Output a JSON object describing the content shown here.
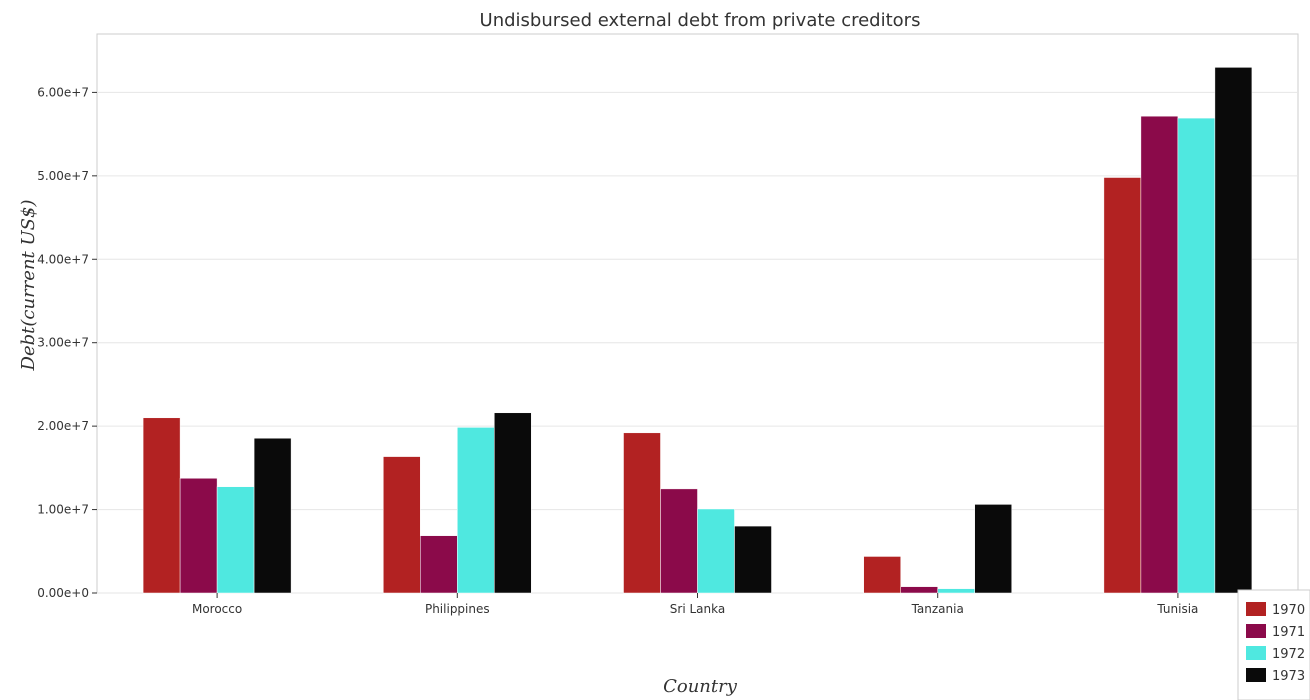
{
  "chart_data": {
    "type": "bar",
    "title": "Undisbursed external debt from private creditors",
    "xlabel": "Country",
    "ylabel": "Debt(current US$)",
    "categories": [
      "Morocco",
      "Philippines",
      "Sri Lanka",
      "Tanzania",
      "Tunisia"
    ],
    "series": [
      {
        "name": "1970",
        "color": "#b22222",
        "values": [
          21000000,
          16350000,
          19200000,
          4380000,
          49800000
        ]
      },
      {
        "name": "1971",
        "color": "#8b0a4a",
        "values": [
          13750000,
          6870000,
          12480000,
          760000,
          57150000
        ]
      },
      {
        "name": "1972",
        "color": "#4fe8e0",
        "values": [
          12740000,
          19850000,
          10070000,
          520000,
          56920000
        ]
      },
      {
        "name": "1973",
        "color": "#0a0a0a",
        "values": [
          18550000,
          21600000,
          8020000,
          10620000,
          63000000
        ]
      }
    ],
    "ylim": [
      0,
      67000000
    ],
    "yticks": [
      0,
      10000000,
      20000000,
      30000000,
      40000000,
      50000000,
      60000000
    ],
    "ytick_labels": [
      "0.00e+0",
      "1.00e+7",
      "2.00e+7",
      "3.00e+7",
      "4.00e+7",
      "5.00e+7",
      "6.00e+7"
    ],
    "grid": true,
    "legend_position": "bottom-right"
  }
}
